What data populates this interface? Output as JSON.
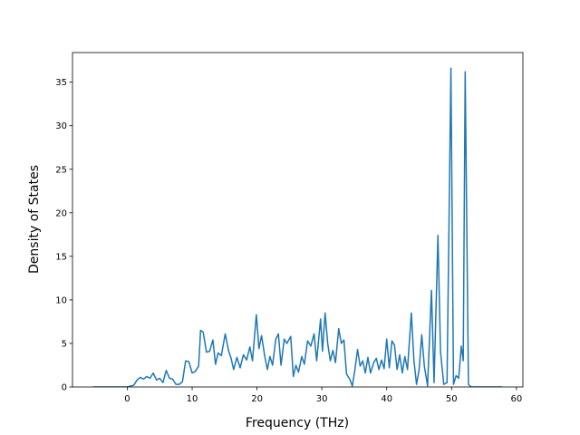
{
  "chart_data": {
    "type": "line",
    "xlabel": "Frequency (THz)",
    "ylabel": "Density of States",
    "x": [
      -5.3,
      0,
      1,
      1.5,
      2,
      2.5,
      3,
      3.5,
      4,
      4.5,
      5,
      5.5,
      6,
      6.5,
      7,
      7.5,
      8,
      8.5,
      9,
      9.5,
      10,
      10.5,
      11,
      11.3,
      11.7,
      12.2,
      12.7,
      13.2,
      13.6,
      14,
      14.5,
      15.1,
      15.6,
      16,
      16.4,
      16.9,
      17.4,
      17.9,
      18.4,
      18.9,
      19.3,
      19.9,
      20.3,
      20.7,
      21.2,
      21.6,
      22,
      22.4,
      22.9,
      23.3,
      23.7,
      24.2,
      24.6,
      25.2,
      25.6,
      26,
      26.4,
      26.9,
      27.3,
      27.8,
      28.3,
      28.8,
      29.2,
      29.8,
      30.1,
      30.5,
      30.9,
      31.3,
      31.7,
      32.1,
      32.6,
      33,
      33.4,
      33.8,
      34.3,
      34.7,
      35.1,
      35.5,
      35.9,
      36.3,
      36.7,
      37.1,
      37.5,
      38,
      38.4,
      38.8,
      39.2,
      39.6,
      40,
      40.4,
      40.8,
      41.2,
      41.6,
      42,
      42.4,
      42.8,
      43.2,
      43.8,
      44.2,
      44.6,
      45,
      45.4,
      45.8,
      46.3,
      46.9,
      47.3,
      47.9,
      48.3,
      48.8,
      49.3,
      49.9,
      50.3,
      50.7,
      51.1,
      51.5,
      51.8,
      52.1,
      52.6,
      53,
      57.8
    ],
    "series": [
      {
        "color": "#1f77b4",
        "values": [
          0,
          0,
          0.2,
          0.8,
          1.1,
          0.9,
          1.2,
          1.0,
          1.6,
          0.8,
          1.0,
          0.5,
          1.9,
          1.0,
          0.9,
          0.3,
          0.3,
          0.6,
          3.0,
          2.9,
          1.6,
          1.8,
          2.4,
          6.5,
          6.3,
          4.0,
          4.1,
          5.4,
          2.6,
          3.9,
          3.6,
          6.1,
          4.2,
          3.3,
          2.0,
          3.4,
          2.2,
          3.7,
          3.1,
          4.6,
          3.0,
          8.3,
          4.4,
          5.9,
          3.5,
          2.0,
          3.5,
          2.5,
          5.5,
          6.1,
          2.5,
          5.5,
          5.0,
          5.8,
          1.2,
          2.5,
          1.7,
          3.5,
          2.6,
          5.3,
          4.7,
          6.1,
          3.0,
          7.8,
          4.1,
          8.5,
          5.0,
          3.0,
          4.2,
          2.8,
          6.7,
          5.0,
          5.4,
          1.5,
          0.9,
          0.1,
          2.0,
          4.3,
          2.4,
          3.0,
          1.6,
          3.4,
          1.6,
          2.8,
          3.3,
          2.0,
          3.1,
          2.1,
          5.5,
          2.2,
          5.3,
          4.8,
          2.0,
          3.7,
          1.6,
          3.5,
          2.0,
          8.5,
          3.0,
          0.3,
          2.0,
          6.0,
          2.4,
          0.1,
          11.1,
          0.5,
          17.4,
          4.0,
          0.3,
          0.5,
          36.6,
          0.3,
          1.3,
          1.0,
          4.7,
          3.0,
          36.2,
          0.3,
          0,
          0
        ]
      }
    ],
    "xlim": [
      -8.45,
      61.0
    ],
    "ylim": [
      0,
      38.4
    ],
    "xticks": [
      0,
      10,
      20,
      30,
      40,
      50,
      60
    ],
    "yticks": [
      0,
      5,
      10,
      15,
      20,
      25,
      30,
      35
    ]
  }
}
